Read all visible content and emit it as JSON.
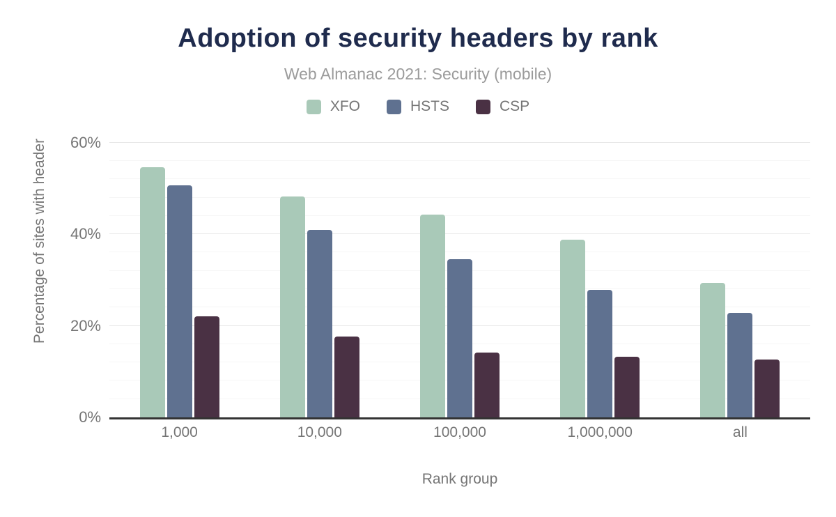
{
  "chart_data": {
    "type": "bar",
    "title": "Adoption of security headers by rank",
    "subtitle": "Web Almanac 2021: Security (mobile)",
    "xlabel": "Rank group",
    "ylabel": "Percentage of sites with header",
    "categories": [
      "1,000",
      "10,000",
      "100,000",
      "1,000,000",
      "all"
    ],
    "series": [
      {
        "name": "XFO",
        "color": "#a9c9b8",
        "values": [
          54.6,
          48.2,
          44.3,
          38.8,
          29.4
        ]
      },
      {
        "name": "HSTS",
        "color": "#5f7190",
        "values": [
          50.7,
          41.0,
          34.5,
          27.8,
          22.9
        ]
      },
      {
        "name": "CSP",
        "color": "#4a3144",
        "values": [
          22.0,
          17.7,
          14.1,
          13.2,
          12.6
        ]
      }
    ],
    "y_ticks": [
      {
        "label": "0%",
        "value": 0
      },
      {
        "label": "20%",
        "value": 20
      },
      {
        "label": "40%",
        "value": 40
      },
      {
        "label": "60%",
        "value": 60
      }
    ],
    "ylim": [
      0,
      63
    ],
    "grid": {
      "major_step": 20,
      "minor_step": 4,
      "max_line": 60
    },
    "legend_position": "top",
    "colors": {
      "title": "#1f2b4d",
      "subtitle": "#9b9b9b",
      "axis_text": "#757575",
      "axis_line": "#333333",
      "major_grid": "#e8e8e8",
      "minor_grid": "#f6f6f6",
      "background": "#ffffff"
    }
  }
}
